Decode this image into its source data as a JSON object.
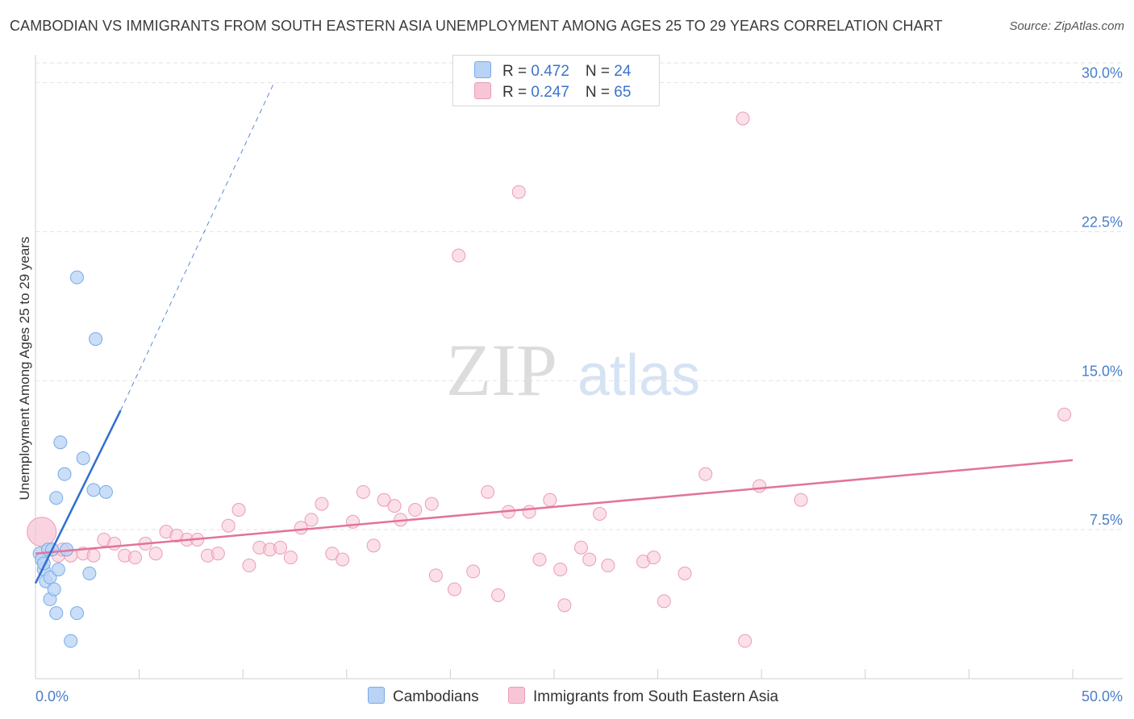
{
  "title": "CAMBODIAN VS IMMIGRANTS FROM SOUTH EASTERN ASIA UNEMPLOYMENT AMONG AGES 25 TO 29 YEARS CORRELATION CHART",
  "source": "Source: ZipAtlas.com",
  "watermark": {
    "zip": "ZIP",
    "atlas": "atlas"
  },
  "legend": {
    "series1": {
      "r_label": "R = ",
      "r_value": "0.472",
      "n_label": "N = ",
      "n_value": "24"
    },
    "series2": {
      "r_label": "R = ",
      "r_value": "0.247",
      "n_label": "N = ",
      "n_value": "65"
    }
  },
  "colors": {
    "blue_fill": "#b8d3f5",
    "blue_stroke": "#7aaae6",
    "blue_line": "#2f6fcf",
    "pink_fill": "#f7c6d6",
    "pink_stroke": "#eb9cb7",
    "pink_line": "#e2739b",
    "grid": "#e3e3e3",
    "tick_text": "#4a7ec9"
  },
  "chart_data": {
    "type": "scatter",
    "title": "CAMBODIAN VS IMMIGRANTS FROM SOUTH EASTERN ASIA UNEMPLOYMENT AMONG AGES 25 TO 29 YEARS CORRELATION CHART",
    "xlabel": "",
    "ylabel": "Unemployment Among Ages 25 to 29 years",
    "xlim": [
      0,
      50
    ],
    "ylim": [
      0,
      31
    ],
    "x_tick_labels": [
      {
        "value": 0,
        "label": "0.0%"
      },
      {
        "value": 50,
        "label": "50.0%"
      }
    ],
    "y_ticks": [
      {
        "value": 7.5,
        "label": "7.5%"
      },
      {
        "value": 15,
        "label": "15.0%"
      },
      {
        "value": 22.5,
        "label": "22.5%"
      },
      {
        "value": 30,
        "label": "30.0%"
      }
    ],
    "series": [
      {
        "name": "Cambodians",
        "r": 0.472,
        "n": 24,
        "trend": {
          "x0": 0,
          "y0": 4.8,
          "x1": 4.1,
          "y1": 13.5,
          "dash_to_x": 11.5,
          "dash_to_y": 30.0
        },
        "points": [
          [
            0.2,
            6.3
          ],
          [
            0.3,
            6.0
          ],
          [
            0.4,
            5.5
          ],
          [
            0.5,
            4.9
          ],
          [
            0.6,
            6.5
          ],
          [
            0.7,
            4.0
          ],
          [
            0.7,
            5.1
          ],
          [
            0.8,
            6.5
          ],
          [
            0.9,
            4.5
          ],
          [
            1.0,
            9.1
          ],
          [
            1.0,
            3.3
          ],
          [
            1.1,
            5.5
          ],
          [
            1.2,
            11.9
          ],
          [
            1.4,
            10.3
          ],
          [
            1.5,
            6.5
          ],
          [
            1.7,
            1.9
          ],
          [
            2.0,
            20.2
          ],
          [
            2.0,
            3.3
          ],
          [
            2.3,
            11.1
          ],
          [
            2.6,
            5.3
          ],
          [
            2.8,
            9.5
          ],
          [
            2.9,
            17.1
          ],
          [
            3.4,
            9.4
          ],
          [
            0.4,
            5.8
          ]
        ]
      },
      {
        "name": "Immigrants from South Eastern Asia",
        "r": 0.247,
        "n": 65,
        "trend": {
          "x0": 0,
          "y0": 6.3,
          "x1": 50,
          "y1": 11.0
        },
        "points": [
          [
            0.3,
            7.4
          ],
          [
            1.1,
            6.2
          ],
          [
            1.3,
            6.5
          ],
          [
            1.7,
            6.2
          ],
          [
            2.3,
            6.3
          ],
          [
            2.8,
            6.2
          ],
          [
            3.3,
            7.0
          ],
          [
            3.8,
            6.8
          ],
          [
            4.3,
            6.2
          ],
          [
            4.8,
            6.1
          ],
          [
            5.3,
            6.8
          ],
          [
            5.8,
            6.3
          ],
          [
            6.3,
            7.4
          ],
          [
            6.8,
            7.2
          ],
          [
            7.3,
            7.0
          ],
          [
            7.8,
            7.0
          ],
          [
            8.3,
            6.2
          ],
          [
            8.8,
            6.3
          ],
          [
            9.3,
            7.7
          ],
          [
            9.8,
            8.5
          ],
          [
            10.3,
            5.7
          ],
          [
            10.8,
            6.6
          ],
          [
            11.3,
            6.5
          ],
          [
            11.8,
            6.6
          ],
          [
            12.3,
            6.1
          ],
          [
            12.8,
            7.6
          ],
          [
            13.3,
            8.0
          ],
          [
            13.8,
            8.8
          ],
          [
            14.3,
            6.3
          ],
          [
            14.8,
            6.0
          ],
          [
            15.3,
            7.9
          ],
          [
            15.8,
            9.4
          ],
          [
            16.3,
            6.7
          ],
          [
            16.8,
            9.0
          ],
          [
            17.3,
            8.7
          ],
          [
            17.6,
            8.0
          ],
          [
            18.3,
            8.5
          ],
          [
            19.1,
            8.8
          ],
          [
            19.3,
            5.2
          ],
          [
            20.2,
            4.5
          ],
          [
            20.4,
            21.3
          ],
          [
            21.1,
            5.4
          ],
          [
            21.8,
            9.4
          ],
          [
            22.3,
            4.2
          ],
          [
            22.8,
            8.4
          ],
          [
            23.3,
            24.5
          ],
          [
            23.8,
            8.4
          ],
          [
            24.3,
            6.0
          ],
          [
            24.8,
            9.0
          ],
          [
            25.3,
            5.5
          ],
          [
            25.5,
            3.7
          ],
          [
            26.3,
            6.6
          ],
          [
            26.7,
            6.0
          ],
          [
            27.2,
            8.3
          ],
          [
            27.6,
            5.7
          ],
          [
            29.3,
            5.9
          ],
          [
            29.8,
            6.1
          ],
          [
            30.3,
            3.9
          ],
          [
            31.3,
            5.3
          ],
          [
            32.3,
            10.3
          ],
          [
            34.1,
            28.2
          ],
          [
            34.2,
            1.9
          ],
          [
            34.9,
            9.7
          ],
          [
            36.9,
            9.0
          ],
          [
            49.6,
            13.3
          ]
        ]
      }
    ]
  },
  "bottom_legend": {
    "item1": "Cambodians",
    "item2": "Immigrants from South Eastern Asia"
  }
}
